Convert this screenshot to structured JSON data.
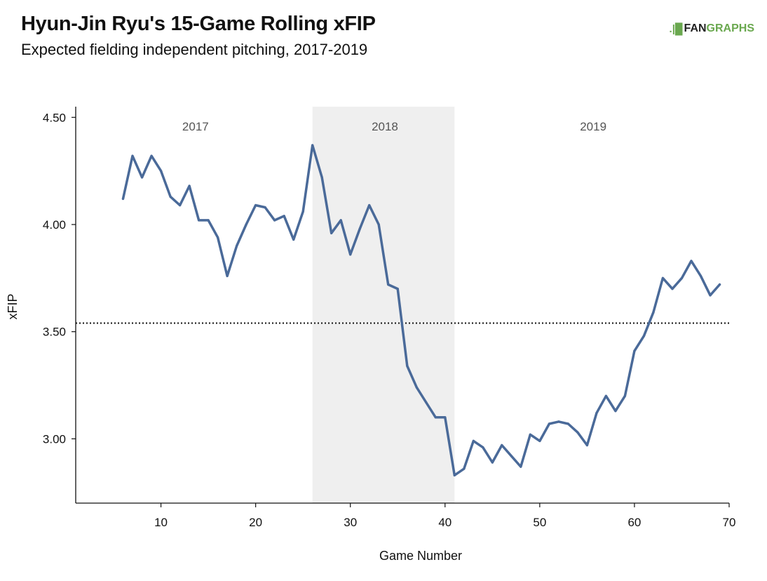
{
  "title": "Hyun-Jin Ryu's 15-Game Rolling xFIP",
  "subtitle": "Expected fielding independent pitching, 2017-2019",
  "logo": {
    "mark": ".|█",
    "fan": "FAN",
    "graphs": "GRAPHS"
  },
  "colors": {
    "line": "#4a6a99",
    "band": "#efefef",
    "reference": "#111111",
    "logo_green": "#6aa84f"
  },
  "chart_data": {
    "type": "line",
    "title": "Hyun-Jin Ryu's 15-Game Rolling xFIP",
    "xlabel": "Game Number",
    "ylabel": "xFIP",
    "xlim": [
      1,
      70
    ],
    "ylim": [
      2.7,
      4.55
    ],
    "x_ticks": [
      10,
      20,
      30,
      40,
      50,
      60,
      70
    ],
    "y_ticks": [
      3.0,
      3.5,
      4.0,
      4.5
    ],
    "y_tick_labels": [
      "3.00",
      "3.50",
      "4.00",
      "4.50"
    ],
    "reference_line": {
      "y": 3.54,
      "style": "dotted"
    },
    "periods": [
      {
        "label": "2017",
        "start": 1,
        "end": 26,
        "shaded": false
      },
      {
        "label": "2018",
        "start": 26,
        "end": 41,
        "shaded": true
      },
      {
        "label": "2019",
        "start": 41,
        "end": 70,
        "shaded": false
      }
    ],
    "grid": false,
    "series": [
      {
        "x": [
          6,
          7,
          8,
          9,
          10,
          11,
          12,
          13,
          14,
          15,
          16,
          17,
          18,
          19,
          20,
          21,
          22,
          23,
          24,
          25,
          26,
          27,
          28,
          29,
          30,
          31,
          32,
          33,
          34,
          35,
          36,
          37,
          38,
          39,
          40,
          41,
          42,
          43,
          44,
          45,
          46,
          47,
          48,
          49,
          50,
          51,
          52,
          53,
          54,
          55,
          56,
          57,
          58,
          59,
          60,
          61,
          62,
          63,
          64,
          65,
          66,
          67,
          68,
          69
        ],
        "values": [
          4.12,
          4.32,
          4.22,
          4.32,
          4.25,
          4.13,
          4.09,
          4.18,
          4.02,
          4.02,
          3.94,
          3.76,
          3.9,
          4.0,
          4.09,
          4.08,
          4.02,
          4.04,
          3.93,
          4.06,
          4.37,
          4.22,
          3.96,
          4.02,
          3.86,
          3.98,
          4.09,
          4.0,
          3.72,
          3.7,
          3.34,
          3.24,
          3.17,
          3.1,
          3.1,
          2.83,
          2.86,
          2.99,
          2.96,
          2.89,
          2.97,
          2.92,
          2.87,
          3.02,
          2.99,
          3.07,
          3.08,
          3.07,
          3.03,
          2.97,
          3.12,
          3.2,
          3.13,
          3.2,
          3.41,
          3.48,
          3.59,
          3.75,
          3.7,
          3.75,
          3.83,
          3.76,
          3.67,
          3.72
        ]
      }
    ]
  }
}
